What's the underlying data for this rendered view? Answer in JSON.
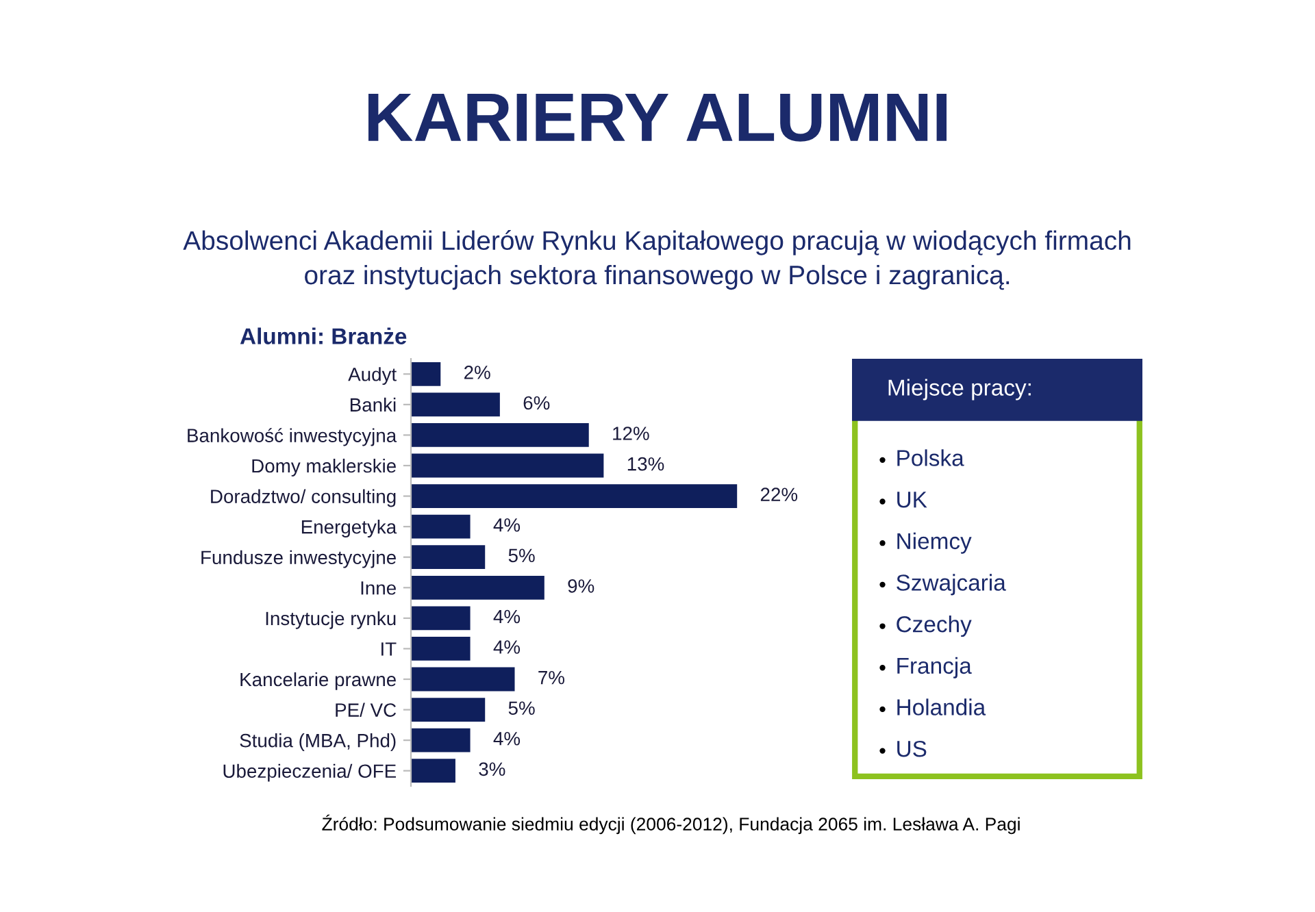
{
  "chart_data": [
    {
      "type": "bar",
      "orientation": "horizontal",
      "title": "KARIERY ALUMNI",
      "subtitle": "Absolwenci Akademii Liderów Rynku Kapitałowego pracują w wiodących firmach\noraz instytucjach sektora finansowego w Polsce i zagranicą.",
      "annotations": [
        "Alumni: Branże",
        "Źródło: Podsumowanie siedmiu edycji (2006-2012), Fundacja 2065 im. Lesława A. Pagi"
      ],
      "categories": [
        "Audyt",
        "Banki",
        "Bankowość inwestycyjna",
        "Domy maklerskie",
        "Doradztwo/ consulting",
        "Energetyka",
        "Fundusze inwestycyjne",
        "Inne",
        "Instytucje rynku",
        "IT",
        "Kancelarie prawne",
        "PE/ VC",
        "Studia (MBA, Phd)",
        "Ubezpieczenia/ OFE"
      ],
      "values": [
        2,
        6,
        12,
        13,
        22,
        4,
        5,
        9,
        4,
        4,
        7,
        5,
        4,
        3
      ],
      "value_labels": [
        "2%",
        "6%",
        "12%",
        "13%",
        "22%",
        "4%",
        "5%",
        "9%",
        "4%",
        "4%",
        "7%",
        "5%",
        "4%",
        "3%"
      ],
      "color": "#0f1f5c",
      "grid": false,
      "legend": false,
      "tick_labels": "y"
    },
    {
      "type": "other",
      "title": "Miejsce pracy:",
      "annotations": [
        "Polska",
        "UK",
        "Niemcy",
        "Szwajcaria",
        "Czechy",
        "Francja",
        "Holandia",
        "US"
      ],
      "color": "#8dc21f"
    }
  ]
}
